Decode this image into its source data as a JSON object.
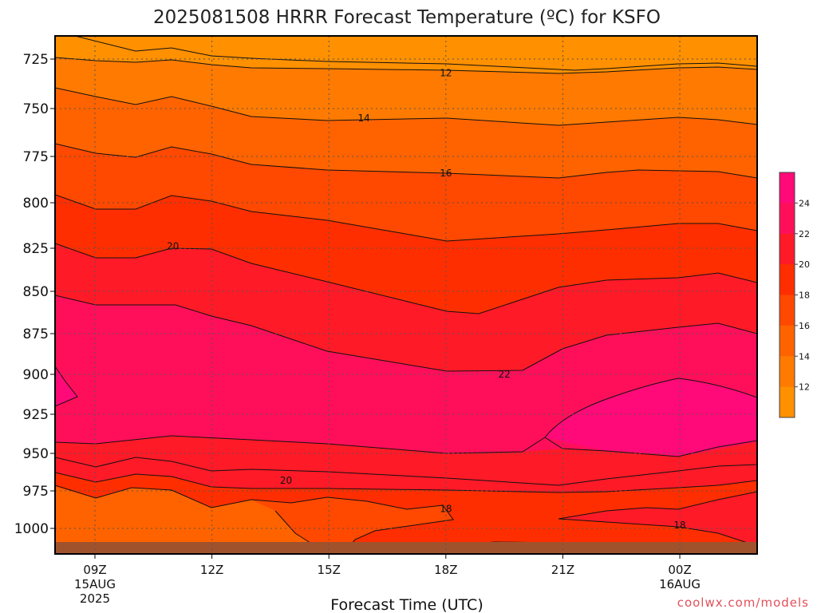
{
  "chart_data": {
    "type": "heatmap",
    "title": "2025081508 HRRR Forecast Temperature (ºC) for KSFO",
    "xlabel": "Forecast Time (UTC)",
    "ylabel": "",
    "credit": "coolwx.com/models",
    "y_scale": "inverted pressure (hPa)",
    "y_ticks": [
      "725",
      "750",
      "775",
      "800",
      "825",
      "850",
      "875",
      "900",
      "925",
      "950",
      "975",
      "1000"
    ],
    "x_ticks": [
      {
        "label": "09Z",
        "sub1": "15AUG",
        "sub2": "2025"
      },
      {
        "label": "12Z",
        "sub1": "",
        "sub2": ""
      },
      {
        "label": "15Z",
        "sub1": "",
        "sub2": ""
      },
      {
        "label": "18Z",
        "sub1": "",
        "sub2": ""
      },
      {
        "label": "21Z",
        "sub1": "",
        "sub2": ""
      },
      {
        "label": "00Z",
        "sub1": "16AUG",
        "sub2": ""
      }
    ],
    "grid": true,
    "colorbar": {
      "placement": "right",
      "ticks": [
        "24",
        "22",
        "20",
        "18",
        "16",
        "14",
        "12"
      ],
      "colors": [
        "#ff0a78",
        "#ff0f5a",
        "#ff1a28",
        "#ff2e00",
        "#ff4800",
        "#ff6300",
        "#ff7a00",
        "#ff9000"
      ]
    },
    "contour_labels": [
      {
        "text": "12",
        "time_h": 18,
        "pressure": 732
      },
      {
        "text": "14",
        "time_h": 15.9,
        "pressure": 755
      },
      {
        "text": "16",
        "time_h": 18,
        "pressure": 784
      },
      {
        "text": "20",
        "time_h": 11,
        "pressure": 824
      },
      {
        "text": "22",
        "time_h": 19.5,
        "pressure": 900
      },
      {
        "text": "20",
        "time_h": 13.9,
        "pressure": 968
      },
      {
        "text": "18",
        "time_h": 18,
        "pressure": 987
      },
      {
        "text": "18",
        "time_h": 24,
        "pressure": 998
      }
    ],
    "ground_color": "#a0522d"
  }
}
